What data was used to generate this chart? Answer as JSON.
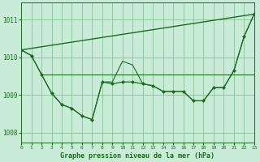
{
  "title": "Graphe pression niveau de la mer (hPa)",
  "bg": "#c8ecd8",
  "grid_color": "#7dba8a",
  "line_color": "#1a6e1a",
  "xlim": [
    0,
    23
  ],
  "ylim": [
    1007.75,
    1011.45
  ],
  "yticks": [
    1008,
    1009,
    1010,
    1011
  ],
  "xticks": [
    0,
    1,
    2,
    3,
    4,
    5,
    6,
    7,
    8,
    9,
    10,
    11,
    12,
    13,
    14,
    15,
    16,
    17,
    18,
    19,
    20,
    21,
    22,
    23
  ],
  "series": [
    {
      "x": [
        0,
        1,
        2,
        3,
        4,
        5,
        6,
        7,
        8,
        9,
        10,
        11,
        12,
        13,
        14,
        15,
        16,
        17,
        18,
        19,
        20,
        21,
        22,
        23
      ],
      "y": [
        1010.2,
        1010.05,
        1009.55,
        1009.05,
        1008.75,
        1008.65,
        1008.45,
        1008.35,
        1009.35,
        1009.3,
        1009.35,
        1009.35,
        1009.3,
        1009.25,
        1009.1,
        1009.1,
        1009.1,
        1008.85,
        1008.85,
        1009.2,
        1009.2,
        1009.65,
        1010.55,
        1011.15
      ],
      "marker": "D",
      "ms": 2.0,
      "lw": 0.9
    },
    {
      "x": [
        0,
        23
      ],
      "y": [
        1010.2,
        1011.15
      ],
      "marker": null,
      "ms": 0,
      "lw": 1.0
    },
    {
      "x": [
        0,
        1,
        2,
        3,
        4,
        5,
        6,
        7,
        8,
        9,
        10,
        11,
        12,
        13,
        14,
        15,
        16,
        17,
        18,
        19,
        20,
        21,
        22,
        23
      ],
      "y": [
        1010.2,
        1010.05,
        1009.55,
        1009.05,
        1008.75,
        1008.65,
        1008.45,
        1008.35,
        1009.35,
        1009.35,
        1009.9,
        1009.8,
        1009.3,
        1009.25,
        1009.1,
        1009.1,
        1009.1,
        1008.85,
        1008.85,
        1009.2,
        1009.2,
        1009.65,
        1010.55,
        1011.15
      ],
      "marker": null,
      "ms": 0,
      "lw": 0.8
    },
    {
      "x": [
        2,
        23
      ],
      "y": [
        1009.55,
        1009.55
      ],
      "marker": null,
      "ms": 0,
      "lw": 0.8
    }
  ]
}
